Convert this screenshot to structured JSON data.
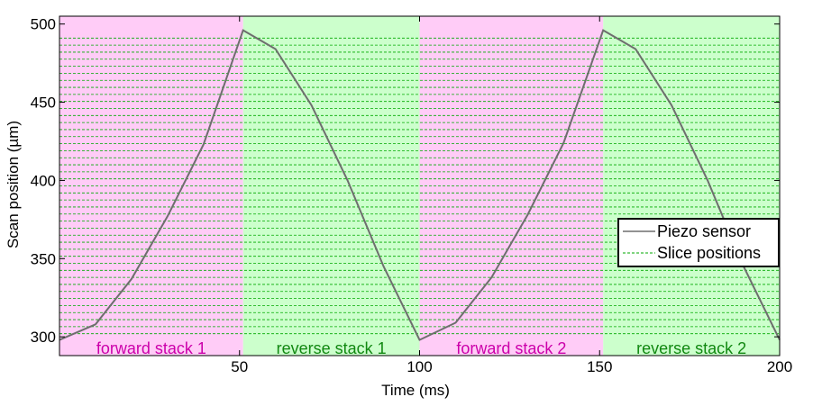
{
  "chart_data": {
    "type": "line",
    "xlabel": "Time (ms)",
    "ylabel": "Scan position (µm)",
    "xlim": [
      0,
      200
    ],
    "ylim": [
      288,
      505
    ],
    "x_ticks": [
      50,
      100,
      150,
      200
    ],
    "x_tick_labels": [
      "50",
      "100",
      "150",
      "200"
    ],
    "y_ticks": [
      300,
      350,
      400,
      450,
      500
    ],
    "y_tick_labels": [
      "300",
      "350",
      "400",
      "450",
      "500"
    ],
    "grid": false,
    "legend_placement": "right",
    "colors": {
      "forward": "#ffccf7",
      "reverse": "#ccffcc",
      "forward_text": "#cc00aa",
      "reverse_text": "#118811",
      "sensor": "#6e6e6e",
      "slices": "#00aa00"
    },
    "regions": [
      {
        "label": "forward stack 1",
        "x_start": 0,
        "x_end": 51,
        "kind": "forward"
      },
      {
        "label": "reverse stack 1",
        "x_start": 51,
        "x_end": 100,
        "kind": "reverse"
      },
      {
        "label": "forward stack 2",
        "x_start": 100,
        "x_end": 151,
        "kind": "forward"
      },
      {
        "label": "reverse stack 2",
        "x_start": 151,
        "x_end": 200,
        "kind": "reverse"
      }
    ],
    "series": [
      {
        "name": "Piezo sensor",
        "style": "solid",
        "x": [
          0,
          10,
          20,
          30,
          40,
          51,
          60,
          70,
          80,
          90,
          100,
          110,
          120,
          130,
          140,
          151,
          160,
          170,
          180,
          190,
          200
        ],
        "y": [
          298,
          308,
          337,
          377,
          423,
          496,
          484,
          448,
          400,
          345,
          298,
          309,
          338,
          378,
          424,
          496,
          484,
          448,
          400,
          345,
          298
        ]
      },
      {
        "name": "Slice positions",
        "style": "dashed",
        "y_start": 302,
        "y_step": 4.5,
        "count": 43
      }
    ]
  }
}
